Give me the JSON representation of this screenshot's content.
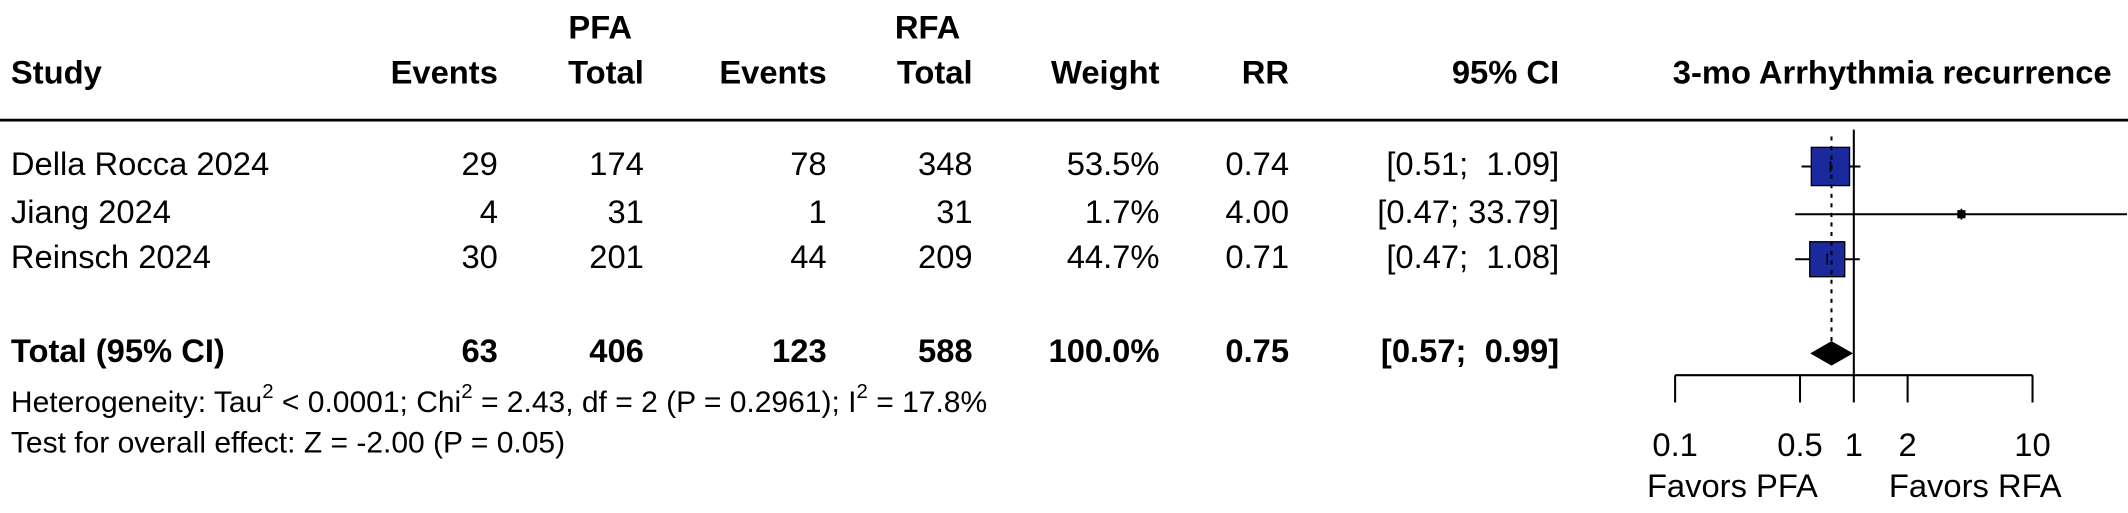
{
  "chart_data": {
    "type": "forest",
    "title": "3-mo Arrhythmia recurrence",
    "headers": {
      "study": "Study",
      "pfa_group": "PFA",
      "rfa_group": "RFA",
      "pfa_events": "Events",
      "pfa_total": "Total",
      "rfa_events": "Events",
      "rfa_total": "Total",
      "weight": "Weight",
      "rr": "RR",
      "ci": "95% CI"
    },
    "studies": [
      "Della Rocca 2024",
      "Jiang 2024",
      "Reinsch 2024"
    ],
    "pfa_events": [
      29,
      4,
      30
    ],
    "pfa_total": [
      174,
      31,
      201
    ],
    "rfa_events": [
      78,
      1,
      44
    ],
    "rfa_total": [
      348,
      31,
      209
    ],
    "weights": [
      53.5,
      1.7,
      44.7
    ],
    "weight_labels": [
      "53.5%",
      "1.7%",
      "44.7%"
    ],
    "values": [
      0.74,
      4.0,
      0.71
    ],
    "value_labels": [
      "0.74",
      "4.00",
      "0.71"
    ],
    "ci_lower": [
      0.51,
      0.47,
      0.47
    ],
    "ci_upper": [
      1.09,
      33.79,
      1.08
    ],
    "ci_labels": [
      "[0.51;  1.09]",
      "[0.47; 33.79]",
      "[0.47;  1.08]"
    ],
    "total": {
      "label": "Total (95% CI)",
      "pfa_events": 63,
      "pfa_total": 406,
      "rfa_events": 123,
      "rfa_total": 588,
      "weight_label": "100.0%",
      "value": 0.75,
      "value_label": "0.75",
      "ci_lower": 0.57,
      "ci_upper": 0.99,
      "ci_label": "[0.57;  0.99]"
    },
    "heterogeneity": [
      "Heterogeneity: Tau",
      "2",
      " < 0.0001; Chi",
      "2",
      " = 2.43, df = 2 (P = 0.2961); I",
      "2",
      " = 17.8%"
    ],
    "overall_test": "Test for overall effect: Z = -2.00 (P = 0.05)",
    "xlim": [
      0.1,
      10
    ],
    "xticks": [
      0.1,
      0.5,
      1,
      2,
      10
    ],
    "log_x": true,
    "favors": [
      "Favors PFA",
      "Favors RFA"
    ],
    "color": "#1a2a9c"
  }
}
